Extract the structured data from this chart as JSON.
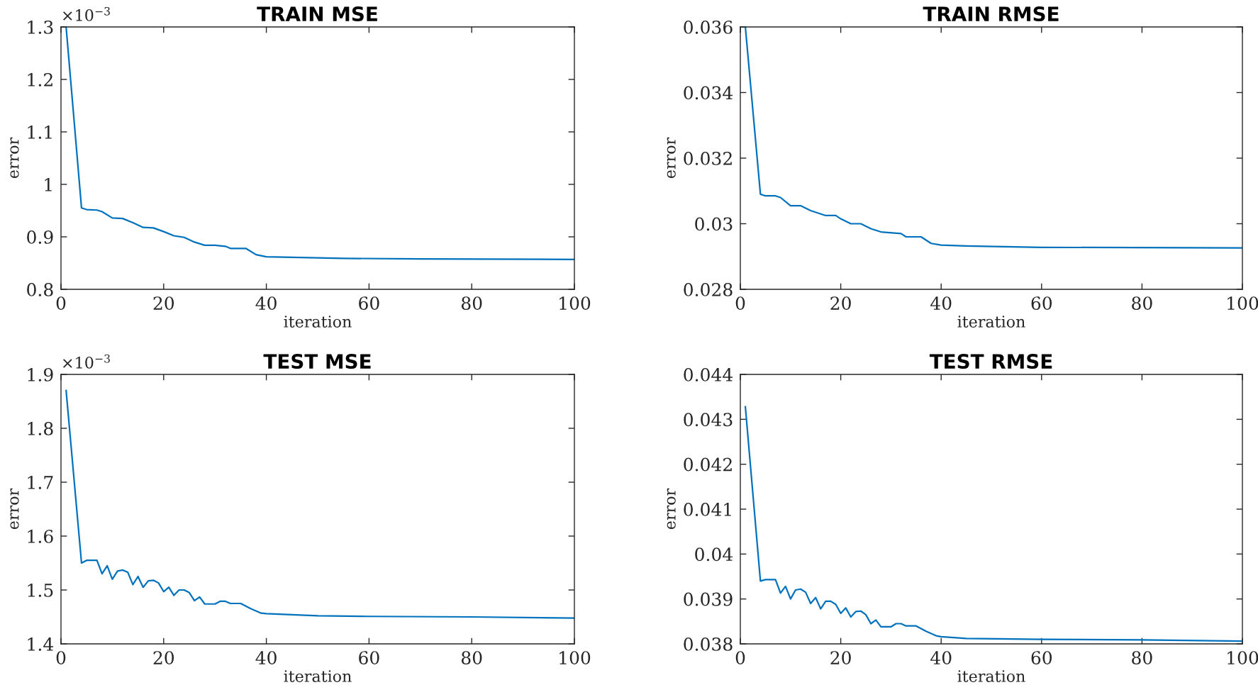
{
  "chart_data": [
    {
      "type": "line",
      "title": "TRAIN MSE",
      "xlabel": "iteration",
      "ylabel": "error",
      "annotations": [
        "×10$^{−3}$"
      ],
      "series": [
        {
          "color": "#0072bd",
          "x": [
            1,
            4,
            5,
            7,
            8,
            10,
            12,
            14,
            16,
            18,
            20,
            22,
            24,
            26,
            28,
            30,
            32,
            33,
            36,
            38,
            40,
            45,
            55,
            70,
            100
          ],
          "values": [
            1.3,
            0.955,
            0.952,
            0.951,
            0.948,
            0.936,
            0.935,
            0.927,
            0.918,
            0.917,
            0.91,
            0.902,
            0.899,
            0.89,
            0.884,
            0.884,
            0.882,
            0.878,
            0.878,
            0.866,
            0.862,
            0.861,
            0.859,
            0.858,
            0.857
          ]
        }
      ],
      "xlim": [
        0,
        100
      ],
      "xticks": [
        0,
        20,
        40,
        60,
        80,
        100
      ],
      "ylim": [
        0.8,
        1.3
      ],
      "yticks": [
        0.8,
        0.9,
        1,
        1.1,
        1.2,
        1.3
      ],
      "grid": false,
      "legend": false
    },
    {
      "type": "line",
      "title": "TRAIN RMSE",
      "xlabel": "iteration",
      "ylabel": "error",
      "series": [
        {
          "color": "#0072bd",
          "x": [
            1,
            4,
            5,
            7,
            8,
            10,
            12,
            14,
            17,
            19,
            20,
            22,
            24,
            26,
            28,
            32,
            33,
            36,
            38,
            40,
            45,
            60,
            100
          ],
          "values": [
            0.036,
            0.0309,
            0.03085,
            0.03085,
            0.0308,
            0.03055,
            0.03055,
            0.0304,
            0.03025,
            0.03025,
            0.03015,
            0.03,
            0.03,
            0.02985,
            0.02975,
            0.0297,
            0.0296,
            0.0296,
            0.0294,
            0.02935,
            0.02932,
            0.02928,
            0.02926
          ]
        }
      ],
      "xlim": [
        0,
        100
      ],
      "xticks": [
        0,
        20,
        40,
        60,
        80,
        100
      ],
      "ylim": [
        0.028,
        0.036
      ],
      "yticks": [
        0.028,
        0.03,
        0.032,
        0.034,
        0.036
      ],
      "grid": false,
      "legend": false
    },
    {
      "type": "line",
      "title": "TEST MSE",
      "xlabel": "iteration",
      "ylabel": "error",
      "annotations": [
        "×10$^{−3}$"
      ],
      "series": [
        {
          "color": "#0072bd",
          "x": [
            1,
            4,
            5,
            7,
            8,
            9,
            10,
            11,
            12,
            13,
            14,
            15,
            16,
            17,
            18,
            19,
            20,
            21,
            22,
            23,
            24,
            25,
            26,
            27,
            28,
            30,
            31,
            32,
            33,
            35,
            37,
            39,
            40,
            50,
            60,
            80,
            100
          ],
          "values": [
            1.87,
            1.55,
            1.555,
            1.555,
            1.53,
            1.545,
            1.52,
            1.535,
            1.537,
            1.533,
            1.51,
            1.525,
            1.505,
            1.517,
            1.518,
            1.513,
            1.497,
            1.505,
            1.49,
            1.5,
            1.5,
            1.495,
            1.48,
            1.487,
            1.474,
            1.474,
            1.479,
            1.479,
            1.475,
            1.475,
            1.465,
            1.457,
            1.456,
            1.452,
            1.451,
            1.45,
            1.448
          ]
        }
      ],
      "xlim": [
        0,
        100
      ],
      "xticks": [
        0,
        20,
        40,
        60,
        80,
        100
      ],
      "ylim": [
        1.4,
        1.9
      ],
      "yticks": [
        1.4,
        1.5,
        1.6,
        1.7,
        1.8,
        1.9
      ],
      "grid": false,
      "legend": false
    },
    {
      "type": "line",
      "title": "TEST RMSE",
      "xlabel": "iteration",
      "ylabel": "error",
      "series": [
        {
          "color": "#0072bd",
          "x": [
            1,
            4,
            5,
            7,
            8,
            9,
            10,
            11,
            12,
            13,
            14,
            15,
            16,
            17,
            18,
            19,
            20,
            21,
            22,
            23,
            24,
            25,
            26,
            27,
            28,
            30,
            31,
            32,
            33,
            35,
            37,
            39,
            40,
            45,
            60,
            80,
            100
          ],
          "values": [
            0.04328,
            0.0394,
            0.03943,
            0.03943,
            0.03913,
            0.03928,
            0.039,
            0.0392,
            0.03922,
            0.03915,
            0.0389,
            0.03903,
            0.03878,
            0.03895,
            0.03895,
            0.03888,
            0.03868,
            0.0388,
            0.0386,
            0.03872,
            0.03873,
            0.03865,
            0.03845,
            0.03853,
            0.03838,
            0.03838,
            0.03845,
            0.03845,
            0.0384,
            0.0384,
            0.03828,
            0.03818,
            0.03816,
            0.03812,
            0.0381,
            0.03809,
            0.03806
          ]
        }
      ],
      "xlim": [
        0,
        100
      ],
      "xticks": [
        0,
        20,
        40,
        60,
        80,
        100
      ],
      "ylim": [
        0.038,
        0.044
      ],
      "yticks": [
        0.038,
        0.039,
        0.04,
        0.041,
        0.042,
        0.043,
        0.044
      ],
      "grid": false,
      "legend": false
    }
  ]
}
